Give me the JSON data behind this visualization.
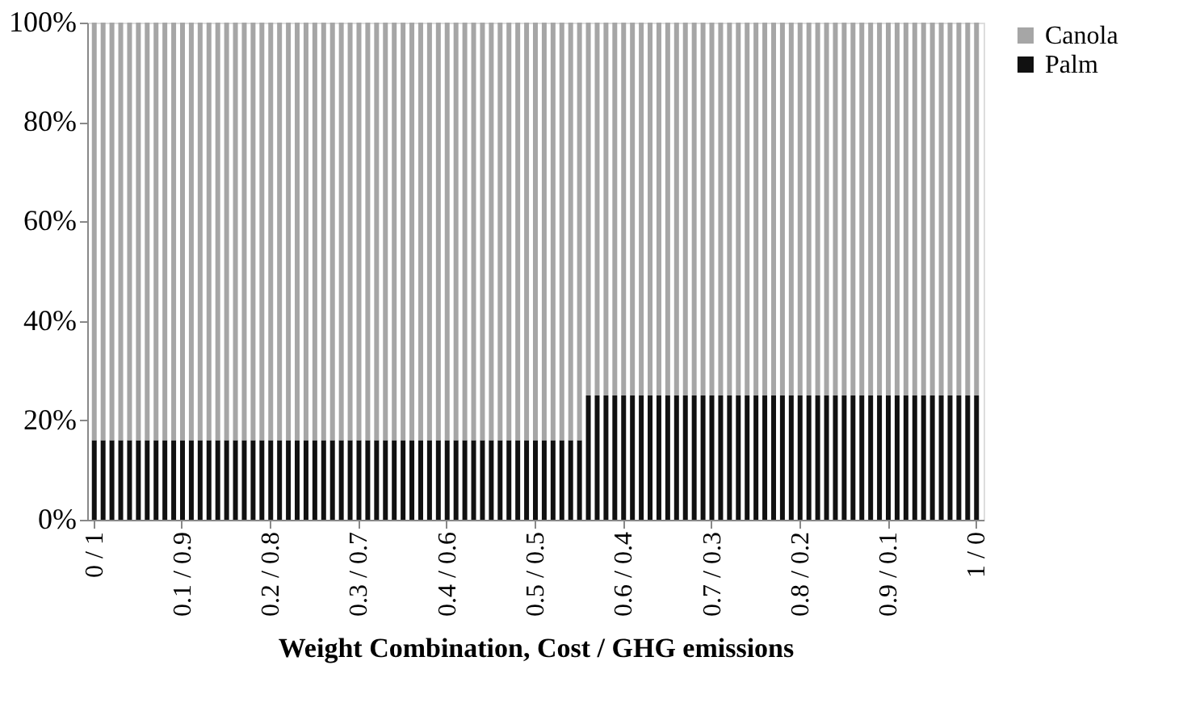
{
  "chart_data": {
    "type": "bar",
    "stacked": true,
    "xlabel": "Weight Combination, Cost / GHG emissions",
    "categories": [
      "0 / 1",
      null,
      null,
      null,
      null,
      null,
      null,
      null,
      null,
      null,
      "0.1 / 0.9",
      null,
      null,
      null,
      null,
      null,
      null,
      null,
      null,
      null,
      "0.2 / 0.8",
      null,
      null,
      null,
      null,
      null,
      null,
      null,
      null,
      null,
      "0.3 / 0.7",
      null,
      null,
      null,
      null,
      null,
      null,
      null,
      null,
      null,
      "0.4 / 0.6",
      null,
      null,
      null,
      null,
      null,
      null,
      null,
      null,
      null,
      "0.5 / 0.5",
      null,
      null,
      null,
      null,
      null,
      null,
      null,
      null,
      null,
      "0.6 / 0.4",
      null,
      null,
      null,
      null,
      null,
      null,
      null,
      null,
      null,
      "0.7 / 0.3",
      null,
      null,
      null,
      null,
      null,
      null,
      null,
      null,
      null,
      "0.8 / 0.2",
      null,
      null,
      null,
      null,
      null,
      null,
      null,
      null,
      null,
      "0.9 / 0.1",
      null,
      null,
      null,
      null,
      null,
      null,
      null,
      null,
      null,
      "1 / 0"
    ],
    "series": [
      {
        "name": "Palm",
        "color": "#111111",
        "values": [
          16,
          16,
          16,
          16,
          16,
          16,
          16,
          16,
          16,
          16,
          16,
          16,
          16,
          16,
          16,
          16,
          16,
          16,
          16,
          16,
          16,
          16,
          16,
          16,
          16,
          16,
          16,
          16,
          16,
          16,
          16,
          16,
          16,
          16,
          16,
          16,
          16,
          16,
          16,
          16,
          16,
          16,
          16,
          16,
          16,
          16,
          16,
          16,
          16,
          16,
          16,
          16,
          16,
          16,
          16,
          16,
          25,
          25,
          25,
          25,
          25,
          25,
          25,
          25,
          25,
          25,
          25,
          25,
          25,
          25,
          25,
          25,
          25,
          25,
          25,
          25,
          25,
          25,
          25,
          25,
          25,
          25,
          25,
          25,
          25,
          25,
          25,
          25,
          25,
          25,
          25,
          25,
          25,
          25,
          25,
          25,
          25,
          25,
          25,
          25,
          25
        ]
      },
      {
        "name": "Canola",
        "color": "#a6a6a6",
        "values": [
          84,
          84,
          84,
          84,
          84,
          84,
          84,
          84,
          84,
          84,
          84,
          84,
          84,
          84,
          84,
          84,
          84,
          84,
          84,
          84,
          84,
          84,
          84,
          84,
          84,
          84,
          84,
          84,
          84,
          84,
          84,
          84,
          84,
          84,
          84,
          84,
          84,
          84,
          84,
          84,
          84,
          84,
          84,
          84,
          84,
          84,
          84,
          84,
          84,
          84,
          84,
          84,
          84,
          84,
          84,
          84,
          75,
          75,
          75,
          75,
          75,
          75,
          75,
          75,
          75,
          75,
          75,
          75,
          75,
          75,
          75,
          75,
          75,
          75,
          75,
          75,
          75,
          75,
          75,
          75,
          75,
          75,
          75,
          75,
          75,
          75,
          75,
          75,
          75,
          75,
          75,
          75,
          75,
          75,
          75,
          75,
          75,
          75,
          75,
          75,
          75
        ]
      }
    ],
    "ylim": [
      0,
      100
    ],
    "yticks": [
      {
        "value": 0,
        "label": "0%"
      },
      {
        "value": 20,
        "label": "20%"
      },
      {
        "value": 40,
        "label": "40%"
      },
      {
        "value": 60,
        "label": "60%"
      },
      {
        "value": 80,
        "label": "80%"
      },
      {
        "value": 100,
        "label": "100%"
      }
    ],
    "grid": false,
    "legend": "right"
  }
}
